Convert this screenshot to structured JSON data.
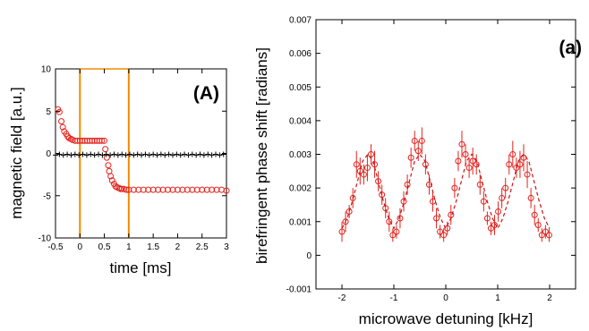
{
  "chart_data": [
    {
      "type": "scatter",
      "panel_label": "(A)",
      "xlabel": "time [ms]",
      "ylabel": "magnetic field [a.u.]",
      "xlim": [
        -0.5,
        3
      ],
      "ylim": [
        -10,
        10
      ],
      "xticks": [
        -0.5,
        0,
        0.5,
        1,
        1.5,
        2,
        2.5,
        3
      ],
      "xtick_labels": [
        "-0.5",
        "0",
        "0.5",
        "1",
        "1.5",
        "2",
        "2.5",
        "3"
      ],
      "yticks": [
        -10,
        -5,
        0,
        5,
        10
      ],
      "ytick_labels": [
        "-10",
        "-5",
        "0",
        "5",
        "10"
      ],
      "pulse_window": {
        "x_start": 0,
        "x_end": 1,
        "color": "#f28a00"
      },
      "series": [
        {
          "color": "#e3231c",
          "marker": "circle",
          "x": [
            -0.45,
            -0.42,
            -0.38,
            -0.35,
            -0.32,
            -0.28,
            -0.25,
            -0.22,
            -0.18,
            -0.15,
            -0.1,
            -0.05,
            0.0,
            0.05,
            0.1,
            0.15,
            0.2,
            0.25,
            0.3,
            0.35,
            0.4,
            0.45,
            0.5,
            0.52,
            0.55,
            0.58,
            0.6,
            0.63,
            0.66,
            0.7,
            0.73,
            0.76,
            0.8,
            0.83,
            0.86,
            0.9,
            0.95,
            1.0,
            1.1,
            1.2,
            1.3,
            1.4,
            1.5,
            1.6,
            1.7,
            1.8,
            1.9,
            2.0,
            2.1,
            2.2,
            2.3,
            2.4,
            2.5,
            2.6,
            2.7,
            2.8,
            2.9,
            3.0
          ],
          "y": [
            5.2,
            4.9,
            3.8,
            3.1,
            2.6,
            2.3,
            2.0,
            1.8,
            1.7,
            1.6,
            1.5,
            1.5,
            1.5,
            1.5,
            1.5,
            1.5,
            1.5,
            1.5,
            1.5,
            1.5,
            1.5,
            1.5,
            1.5,
            0.5,
            -0.5,
            -1.4,
            -2.1,
            -2.7,
            -3.2,
            -3.6,
            -3.9,
            -4.0,
            -4.1,
            -4.2,
            -4.2,
            -4.2,
            -4.3,
            -4.3,
            -4.3,
            -4.3,
            -4.3,
            -4.3,
            -4.3,
            -4.3,
            -4.3,
            -4.3,
            -4.3,
            -4.3,
            -4.3,
            -4.3,
            -4.3,
            -4.3,
            -4.3,
            -4.3,
            -4.3,
            -4.3,
            -4.3,
            -4.4
          ]
        },
        {
          "color": "#000000",
          "marker": "plus",
          "x": [
            -0.5,
            -0.42,
            -0.34,
            -0.26,
            -0.18,
            -0.1,
            -0.02,
            0.06,
            0.14,
            0.22,
            0.3,
            0.38,
            0.46,
            0.54,
            0.62,
            0.7,
            0.78,
            0.86,
            0.94,
            1.02,
            1.1,
            1.18,
            1.26,
            1.34,
            1.42,
            1.5,
            1.58,
            1.66,
            1.74,
            1.82,
            1.9,
            1.98,
            2.06,
            2.14,
            2.22,
            2.3,
            2.38,
            2.46,
            2.54,
            2.62,
            2.7,
            2.78,
            2.86,
            2.94
          ],
          "y": [
            -0.2,
            -0.1,
            -0.2,
            -0.1,
            -0.2,
            -0.1,
            -0.2,
            -0.1,
            -0.2,
            -0.1,
            -0.2,
            -0.1,
            -0.2,
            -0.1,
            -0.2,
            -0.1,
            -0.2,
            -0.1,
            -0.2,
            -0.1,
            -0.2,
            -0.1,
            -0.2,
            -0.1,
            -0.2,
            -0.1,
            -0.2,
            -0.1,
            -0.2,
            -0.1,
            -0.2,
            -0.1,
            -0.2,
            -0.1,
            -0.2,
            -0.1,
            -0.2,
            -0.1,
            -0.2,
            -0.1,
            -0.2,
            -0.1,
            -0.2,
            -0.1
          ]
        }
      ]
    },
    {
      "type": "scatter",
      "panel_label": "(a)",
      "xlabel": "microwave detuning [kHz]",
      "ylabel": "birefringent phase shift [radians]",
      "xlim": [
        -2.5,
        2.5
      ],
      "ylim": [
        -0.001,
        0.007
      ],
      "xticks": [
        -2,
        -1,
        0,
        1,
        2
      ],
      "xtick_labels": [
        "-2",
        "-1",
        "0",
        "1",
        "2"
      ],
      "yticks": [
        -0.001,
        0,
        0.001,
        0.002,
        0.003,
        0.004,
        0.005,
        0.006,
        0.007
      ],
      "ytick_labels": [
        "-0.001",
        "0",
        "0.001",
        "0.002",
        "0.003",
        "0.004",
        "0.005",
        "0.006",
        "0.007"
      ],
      "series": [
        {
          "color": "#e3231c",
          "marker": "circle",
          "error_bars": true,
          "x": [
            -2.0,
            -1.93,
            -1.86,
            -1.79,
            -1.72,
            -1.65,
            -1.58,
            -1.51,
            -1.44,
            -1.37,
            -1.3,
            -1.23,
            -1.16,
            -1.09,
            -1.02,
            -0.95,
            -0.88,
            -0.81,
            -0.74,
            -0.67,
            -0.6,
            -0.53,
            -0.46,
            -0.39,
            -0.32,
            -0.25,
            -0.18,
            -0.11,
            -0.04,
            0.03,
            0.1,
            0.17,
            0.24,
            0.31,
            0.38,
            0.45,
            0.52,
            0.59,
            0.66,
            0.73,
            0.8,
            0.87,
            0.94,
            1.01,
            1.08,
            1.15,
            1.22,
            1.29,
            1.36,
            1.43,
            1.5,
            1.57,
            1.64,
            1.71,
            1.78,
            1.85,
            1.92,
            1.99
          ],
          "y": [
            0.0007,
            0.001,
            0.0013,
            0.0017,
            0.0027,
            0.0025,
            0.0024,
            0.0026,
            0.003,
            0.0027,
            0.0022,
            0.0018,
            0.0014,
            0.001,
            0.0006,
            0.0007,
            0.0011,
            0.0016,
            0.0021,
            0.0029,
            0.0034,
            0.0031,
            0.0034,
            0.0027,
            0.0021,
            0.0016,
            0.0011,
            0.0007,
            0.0006,
            0.0008,
            0.0012,
            0.002,
            0.0028,
            0.0033,
            0.003,
            0.0026,
            0.0028,
            0.0027,
            0.0021,
            0.0016,
            0.0011,
            0.0008,
            0.0009,
            0.0013,
            0.0017,
            0.002,
            0.0027,
            0.003,
            0.0026,
            0.0027,
            0.0029,
            0.0024,
            0.0017,
            0.0012,
            0.0009,
            0.0006,
            0.0007,
            0.0006
          ],
          "yerr": [
            0.0003,
            0.0003,
            0.0002,
            0.0003,
            0.0004,
            0.0004,
            0.0003,
            0.0004,
            0.0003,
            0.0004,
            0.0003,
            0.0003,
            0.0003,
            0.0003,
            0.0002,
            0.0002,
            0.0003,
            0.0003,
            0.0003,
            0.0003,
            0.0003,
            0.0003,
            0.0004,
            0.0003,
            0.0003,
            0.0003,
            0.0003,
            0.0002,
            0.0002,
            0.0002,
            0.0003,
            0.0003,
            0.0003,
            0.0004,
            0.0003,
            0.0003,
            0.0004,
            0.0003,
            0.0003,
            0.0003,
            0.0002,
            0.0002,
            0.0003,
            0.0003,
            0.0003,
            0.0003,
            0.0003,
            0.0004,
            0.0003,
            0.0004,
            0.0004,
            0.0004,
            0.0003,
            0.0003,
            0.0002,
            0.0002,
            0.0002,
            0.0002
          ]
        },
        {
          "color": "#c8141a",
          "line": "dashed",
          "fit": true,
          "x": [
            -2.0,
            -1.9,
            -1.8,
            -1.7,
            -1.6,
            -1.5,
            -1.4,
            -1.3,
            -1.2,
            -1.1,
            -1.0,
            -0.9,
            -0.8,
            -0.7,
            -0.6,
            -0.5,
            -0.4,
            -0.3,
            -0.2,
            -0.1,
            0.0,
            0.1,
            0.2,
            0.3,
            0.4,
            0.5,
            0.6,
            0.7,
            0.8,
            0.9,
            1.0,
            1.1,
            1.2,
            1.3,
            1.4,
            1.5,
            1.6,
            1.7,
            1.8,
            1.9,
            2.0
          ],
          "y": [
            0.0008,
            0.0011,
            0.0016,
            0.0022,
            0.0028,
            0.003,
            0.0028,
            0.0022,
            0.0016,
            0.0011,
            0.0008,
            0.0011,
            0.0016,
            0.0022,
            0.0028,
            0.003,
            0.0028,
            0.0022,
            0.0016,
            0.0011,
            0.0008,
            0.0011,
            0.0016,
            0.0022,
            0.0028,
            0.003,
            0.0028,
            0.0022,
            0.0016,
            0.0011,
            0.0008,
            0.0011,
            0.0016,
            0.0022,
            0.0028,
            0.003,
            0.0028,
            0.0022,
            0.0016,
            0.0011,
            0.0008
          ]
        }
      ]
    }
  ]
}
